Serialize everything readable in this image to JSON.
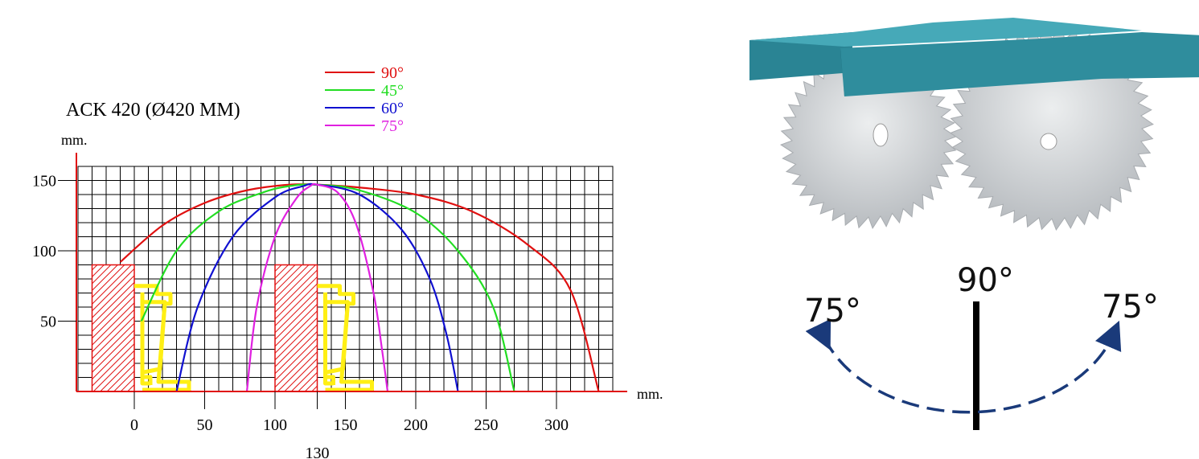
{
  "chart_data": {
    "type": "line",
    "title": "ACK 420 (Ø420 MM)",
    "ylabel": "mm.",
    "xlabel": "mm.",
    "xticks": [
      0,
      50,
      100,
      150,
      200,
      250,
      300
    ],
    "yticks": [
      50,
      100,
      150
    ],
    "xtick_extra": 130,
    "xlim": [
      -40,
      350
    ],
    "ylim": [
      0,
      160
    ],
    "grid": true,
    "legend_position": "top",
    "series": [
      {
        "name": "90°",
        "color": "#e01010",
        "points": [
          [
            -10,
            92
          ],
          [
            20,
            118
          ],
          [
            50,
            134
          ],
          [
            80,
            143
          ],
          [
            110,
            147
          ],
          [
            130,
            147
          ],
          [
            160,
            145
          ],
          [
            200,
            140
          ],
          [
            240,
            128
          ],
          [
            280,
            104
          ],
          [
            310,
            72
          ],
          [
            330,
            0
          ]
        ]
      },
      {
        "name": "45°",
        "color": "#22dd22",
        "points": [
          [
            5,
            50
          ],
          [
            30,
            100
          ],
          [
            60,
            128
          ],
          [
            90,
            141
          ],
          [
            110,
            146
          ],
          [
            130,
            147
          ],
          [
            160,
            143
          ],
          [
            200,
            127
          ],
          [
            230,
            100
          ],
          [
            255,
            60
          ],
          [
            270,
            0
          ]
        ]
      },
      {
        "name": "60°",
        "color": "#1010d0",
        "points": [
          [
            30,
            0
          ],
          [
            45,
            60
          ],
          [
            70,
            110
          ],
          [
            100,
            138
          ],
          [
            120,
            146
          ],
          [
            130,
            147
          ],
          [
            160,
            140
          ],
          [
            190,
            115
          ],
          [
            210,
            80
          ],
          [
            222,
            40
          ],
          [
            230,
            0
          ]
        ]
      },
      {
        "name": "75°",
        "color": "#e020e0",
        "points": [
          [
            80,
            0
          ],
          [
            87,
            60
          ],
          [
            100,
            110
          ],
          [
            115,
            137
          ],
          [
            125,
            146
          ],
          [
            130,
            147
          ],
          [
            145,
            141
          ],
          [
            158,
            118
          ],
          [
            170,
            70
          ],
          [
            176,
            30
          ],
          [
            180,
            0
          ]
        ]
      }
    ],
    "obstacles": [
      {
        "x0": -30,
        "x1": 0,
        "y": 90
      },
      {
        "x0": 100,
        "x1": 130,
        "y": 90
      }
    ]
  },
  "angle_diagram": {
    "center_label": "90°",
    "left_label": "75°",
    "right_label": "75°"
  },
  "colors": {
    "axis": "#e01010",
    "grid": "#000000",
    "profile": "#ffef14",
    "wood": "#2e8a9a",
    "blade": "#d4d6d8",
    "arc": "#1a3a7a"
  }
}
